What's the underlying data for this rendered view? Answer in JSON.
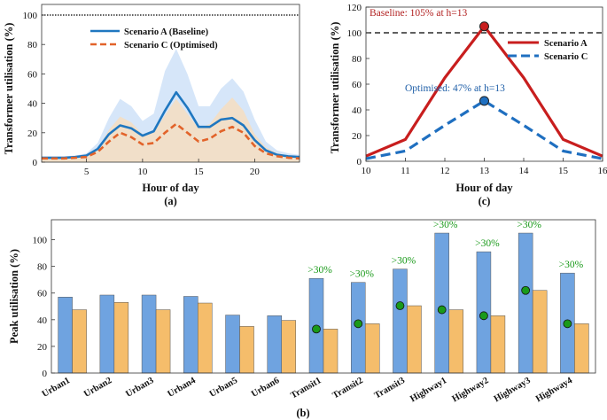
{
  "chart_data": [
    {
      "id": "a",
      "type": "line",
      "subtitle": "(a)",
      "xlabel": "Hour of day",
      "ylabel": "Transformer utilisation (%)",
      "xlim": [
        1,
        24
      ],
      "ylim": [
        0,
        100
      ],
      "xticks": [
        5,
        10,
        15,
        20
      ],
      "yticks": [
        0,
        20,
        40,
        60,
        80,
        100
      ],
      "reference_line": 100,
      "legend_position": "top-left",
      "x": [
        1,
        2,
        3,
        4,
        5,
        6,
        7,
        8,
        9,
        10,
        11,
        12,
        13,
        14,
        15,
        16,
        17,
        18,
        19,
        20,
        21,
        22,
        23,
        24
      ],
      "series": [
        {
          "name": "Scenario A (Baseline)",
          "color": "#1f77c0",
          "style": "solid",
          "values": [
            3,
            3,
            3,
            3.5,
            4.5,
            9,
            19,
            25,
            23,
            18,
            21,
            35,
            47.5,
            37,
            24,
            24,
            29,
            30,
            25,
            15,
            8,
            5,
            4,
            3.5
          ],
          "band_upper": [
            4,
            4,
            4,
            4.5,
            6,
            13,
            30,
            43,
            38,
            28,
            33,
            62,
            77,
            60,
            38,
            38,
            50,
            57,
            48,
            29,
            14,
            8,
            6,
            5
          ]
        },
        {
          "name": "Scenario C (Optimised)",
          "color": "#e2632a",
          "style": "dashed",
          "values": [
            2.5,
            2.5,
            2.5,
            3,
            3.5,
            7,
            14,
            20,
            17,
            12,
            13,
            20,
            26,
            20,
            14,
            16,
            21,
            24,
            20,
            11,
            6,
            4,
            3,
            2.5
          ],
          "band_upper": [
            3,
            3,
            3,
            3.5,
            4.5,
            9,
            22,
            31,
            27,
            19,
            20,
            32,
            43,
            33,
            23,
            26,
            36,
            44,
            35,
            19,
            10,
            6,
            4.5,
            3.5
          ]
        }
      ]
    },
    {
      "id": "c",
      "type": "line",
      "subtitle": "(c)",
      "xlabel": "Hour of day",
      "ylabel": "Transformer utilisation (%)",
      "xlim": [
        10,
        16
      ],
      "ylim": [
        0,
        120
      ],
      "xticks": [
        10,
        11,
        12,
        13,
        14,
        15,
        16
      ],
      "yticks": [
        0,
        20,
        40,
        60,
        80,
        100,
        120
      ],
      "reference_line": 100,
      "legend_position": "right",
      "x": [
        10,
        11,
        12,
        13,
        14,
        15,
        16
      ],
      "series": [
        {
          "name": "Scenario A",
          "color": "#c81e1e",
          "style": "solid",
          "values": [
            4,
            17,
            65,
            105,
            65,
            17,
            4
          ]
        },
        {
          "name": "Scenario C",
          "color": "#1f6fc0",
          "style": "dashed",
          "values": [
            2,
            8,
            28,
            47,
            28,
            8,
            2
          ]
        }
      ],
      "annotations": [
        {
          "text": "Baseline: 105% at h=13",
          "color": "#b22222",
          "x": 13,
          "y": 105
        },
        {
          "text": "Optimised: 47% at h=13",
          "color": "#1f5fa8",
          "x": 13,
          "y": 47
        }
      ]
    },
    {
      "id": "b",
      "type": "bar",
      "subtitle": "(b)",
      "ylabel": "Peak utilisation (%)",
      "ylim": [
        0,
        115
      ],
      "yticks": [
        0,
        20,
        40,
        60,
        80,
        100
      ],
      "categories": [
        "Urban1",
        "Urban2",
        "Urban3",
        "Urban4",
        "Urban5",
        "Urban6",
        "Transit1",
        "Transit2",
        "Transit3",
        "Highway1",
        "Highway2",
        "Highway3",
        "Highway4"
      ],
      "series": [
        {
          "color": "#6fa3e0",
          "values": [
            57,
            58.5,
            58.5,
            57.5,
            43.5,
            43,
            71,
            68,
            78,
            105,
            91,
            105,
            75
          ]
        },
        {
          "color": "#f5bd6b",
          "values": [
            47.5,
            53,
            47.5,
            52.5,
            35,
            39.5,
            33,
            37,
            50.5,
            47.5,
            43,
            62,
            37
          ]
        }
      ],
      "markers": [
        null,
        null,
        null,
        null,
        null,
        null,
        33,
        37,
        50.5,
        47.5,
        43,
        62,
        37
      ],
      "marker_color": "#1a9a1a",
      "labels": [
        "",
        "",
        "",
        "",
        "",
        "",
        ">30%",
        ">30%",
        ">30%",
        ">30%",
        ">30%",
        ">30%",
        ">30%"
      ],
      "label_color": "#1a9a1a"
    }
  ]
}
